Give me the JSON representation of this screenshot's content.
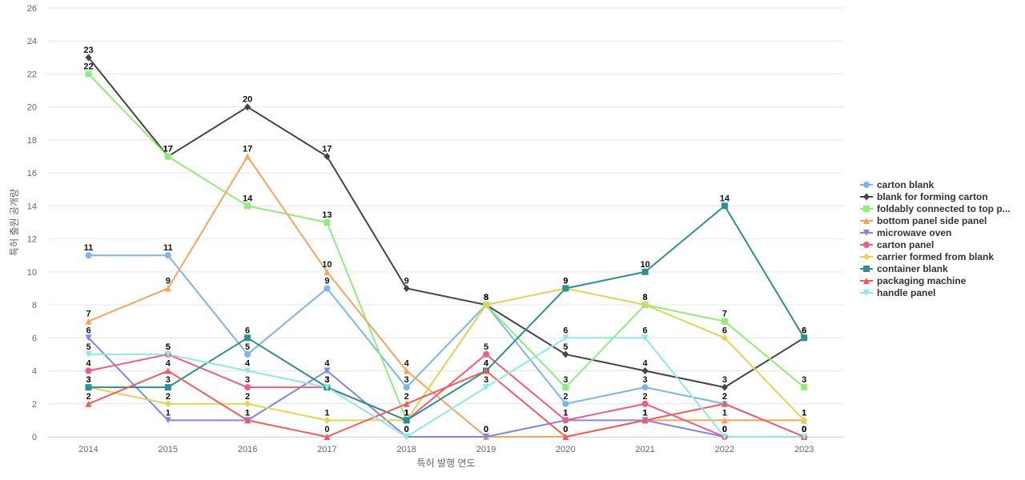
{
  "chart_data": {
    "type": "line",
    "title": "",
    "xlabel": "특허 발행 연도",
    "ylabel": "특허 출원 공개량",
    "ylim": [
      0,
      26
    ],
    "yticks": [
      0,
      2,
      4,
      6,
      8,
      10,
      12,
      14,
      16,
      18,
      20,
      22,
      24,
      26
    ],
    "grid": true,
    "legend_position": "right",
    "categories": [
      "2014",
      "2015",
      "2016",
      "2017",
      "2018",
      "2019",
      "2020",
      "2021",
      "2022",
      "2023"
    ],
    "series": [
      {
        "name": "carton blank",
        "color": "#7cb5ec",
        "marker": "circle",
        "values": [
          11,
          11,
          5,
          9,
          3,
          8,
          2,
          3,
          2,
          0
        ]
      },
      {
        "name": "blank for forming carton",
        "color": "#434348",
        "marker": "diamond",
        "values": [
          23,
          17,
          20,
          17,
          9,
          8,
          5,
          4,
          3,
          6
        ]
      },
      {
        "name": "foldably connected to top p...",
        "color": "#90ed7d",
        "marker": "square",
        "values": [
          22,
          17,
          14,
          13,
          1,
          8,
          3,
          8,
          7,
          3
        ]
      },
      {
        "name": "bottom panel side panel",
        "color": "#f7a35c",
        "marker": "triangle",
        "values": [
          7,
          9,
          17,
          10,
          4,
          0,
          0,
          1,
          1,
          1
        ]
      },
      {
        "name": "microwave oven",
        "color": "#8085e9",
        "marker": "triangle-down",
        "values": [
          6,
          1,
          1,
          4,
          0,
          0,
          1,
          1,
          0,
          0
        ]
      },
      {
        "name": "carton panel",
        "color": "#f15c80",
        "marker": "circle",
        "values": [
          4,
          5,
          3,
          3,
          1,
          5,
          1,
          2,
          0,
          0
        ]
      },
      {
        "name": "carrier formed from blank",
        "color": "#e4d354",
        "marker": "diamond",
        "values": [
          3,
          2,
          2,
          1,
          1,
          8,
          9,
          8,
          6,
          1
        ]
      },
      {
        "name": "container blank",
        "color": "#2b908f",
        "marker": "square",
        "values": [
          3,
          3,
          6,
          3,
          1,
          4,
          9,
          10,
          14,
          6
        ]
      },
      {
        "name": "packaging machine",
        "color": "#f45b5b",
        "marker": "triangle",
        "values": [
          2,
          4,
          1,
          0,
          2,
          4,
          0,
          1,
          2,
          0
        ]
      },
      {
        "name": "handle panel",
        "color": "#91e8e1",
        "marker": "triangle-down",
        "values": [
          5,
          5,
          4,
          3,
          0,
          3,
          6,
          6,
          0,
          0
        ]
      }
    ]
  }
}
